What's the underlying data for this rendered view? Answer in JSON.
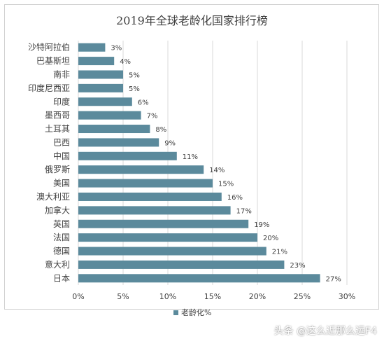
{
  "chart_data": {
    "type": "bar",
    "orientation": "horizontal",
    "title": "2019年全球老龄化国家排行榜",
    "categories": [
      "沙特阿拉伯",
      "巴基斯坦",
      "南非",
      "印度尼西亚",
      "印度",
      "墨西哥",
      "土耳其",
      "巴西",
      "中国",
      "俄罗斯",
      "美国",
      "澳大利亚",
      "加拿大",
      "英国",
      "法国",
      "德国",
      "意大利",
      "日本"
    ],
    "series": [
      {
        "name": "老龄化%",
        "values": [
          3,
          4,
          5,
          5,
          6,
          7,
          8,
          9,
          11,
          14,
          15,
          16,
          17,
          19,
          20,
          21,
          23,
          27
        ],
        "value_labels": [
          "3%",
          "4%",
          "5%",
          "5%",
          "6%",
          "7%",
          "8%",
          "9%",
          "11%",
          "14%",
          "15%",
          "16%",
          "17%",
          "19%",
          "20%",
          "21%",
          "23%",
          "27%"
        ]
      }
    ],
    "xlim": [
      0,
      30
    ],
    "x_ticks": [
      0,
      5,
      10,
      15,
      20,
      25,
      30
    ],
    "x_tick_labels": [
      "0%",
      "5%",
      "10%",
      "15%",
      "20%",
      "25%",
      "30%"
    ],
    "gridlines": true,
    "legend_position": "bottom",
    "bar_color": "#5b8a9c"
  },
  "watermark": "头条 @这么近那么远F4"
}
